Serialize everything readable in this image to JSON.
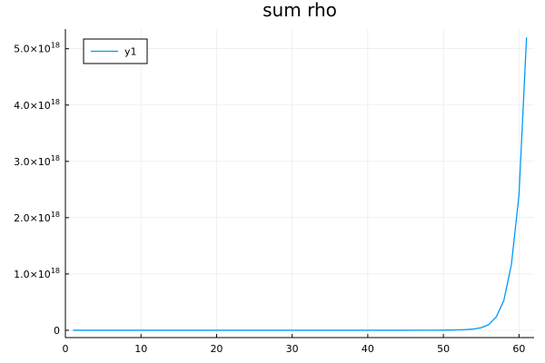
{
  "chart_data": {
    "type": "line",
    "title": "sum rho",
    "xlabel": "",
    "ylabel": "",
    "xlim": [
      0,
      62
    ],
    "ylim": [
      -1.3e+17,
      5.35e+18
    ],
    "grid": true,
    "legend_placement": "top-left",
    "x_ticks": [
      0,
      10,
      20,
      30,
      40,
      50,
      60
    ],
    "y_ticks": [
      {
        "value": 0,
        "mantissa": "0",
        "sci": false
      },
      {
        "value": 1e+18,
        "mantissa": "1.0×10",
        "exp": "18",
        "sci": true
      },
      {
        "value": 2e+18,
        "mantissa": "2.0×10",
        "exp": "18",
        "sci": true
      },
      {
        "value": 3e+18,
        "mantissa": "3.0×10",
        "exp": "18",
        "sci": true
      },
      {
        "value": 4e+18,
        "mantissa": "4.0×10",
        "exp": "18",
        "sci": true
      },
      {
        "value": 5e+18,
        "mantissa": "5.0×10",
        "exp": "18",
        "sci": true
      }
    ],
    "series": [
      {
        "name": "y1",
        "color": "#009af9",
        "x": [
          1,
          5,
          10,
          15,
          20,
          25,
          30,
          35,
          40,
          45,
          48,
          50,
          51,
          52,
          53,
          54,
          55,
          56,
          57,
          58,
          59,
          60,
          61
        ],
        "values": [
          0,
          0,
          0,
          0,
          0,
          0,
          0,
          0,
          0,
          0,
          1000000000000000.0,
          2000000000000000.0,
          4000000000000000.0,
          7000000000000000.0,
          1.2e+16,
          2.2e+16,
          4.5e+16,
          1e+17,
          2.4e+17,
          5.3e+17,
          1.17e+18,
          2.4e+18,
          5.2e+18
        ]
      }
    ]
  }
}
